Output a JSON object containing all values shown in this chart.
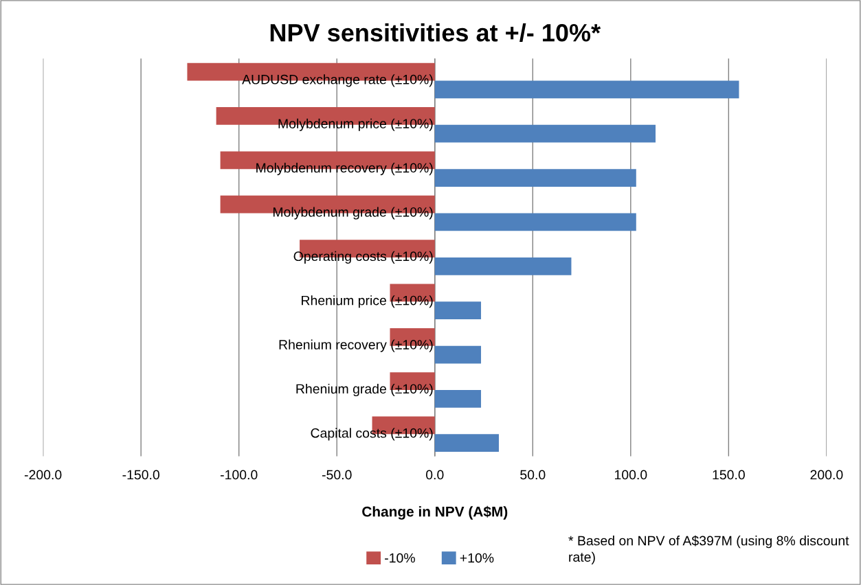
{
  "chart_data": {
    "type": "bar",
    "orientation": "horizontal",
    "title": "NPV sensitivities at +/- 10%*",
    "xlabel": "Change in NPV (A$M)",
    "categories": [
      "AUDUSD exchange rate (±10%)",
      "Molybdenum price (±10%)",
      "Molybdenum recovery (±10%)",
      "Molybdenum grade (±10%)",
      "Operating costs (±10%)",
      "Rhenium price (±10%)",
      "Rhenium recovery (±10%)",
      "Rhenium grade (±10%)",
      "Capital costs (±10%)"
    ],
    "series": [
      {
        "name": "-10%",
        "color": "#c0504d",
        "values": [
          -126.4,
          -111.6,
          -109.5,
          -109.5,
          -69.0,
          -22.9,
          -22.9,
          -22.9,
          -32.0
        ]
      },
      {
        "name": "+10%",
        "color": "#4f81bd",
        "values": [
          155.3,
          112.7,
          102.8,
          102.8,
          69.7,
          23.6,
          23.6,
          23.6,
          32.7
        ]
      }
    ],
    "xlim": [
      -200,
      200
    ],
    "xticks": [
      {
        "value": -200,
        "label": "-200.0"
      },
      {
        "value": -150,
        "label": "-150.0"
      },
      {
        "value": -100,
        "label": "-100.0"
      },
      {
        "value": -50,
        "label": "-50.0"
      },
      {
        "value": 0,
        "label": "0.0"
      },
      {
        "value": 50,
        "label": "50.0"
      },
      {
        "value": 100,
        "label": "100.0"
      },
      {
        "value": 150,
        "label": "150.0"
      },
      {
        "value": 200,
        "label": "200.0"
      }
    ],
    "grid": "x",
    "legend": "bottom",
    "annotations": [
      "* Based on NPV of A$397M (using 8% discount rate)"
    ]
  }
}
